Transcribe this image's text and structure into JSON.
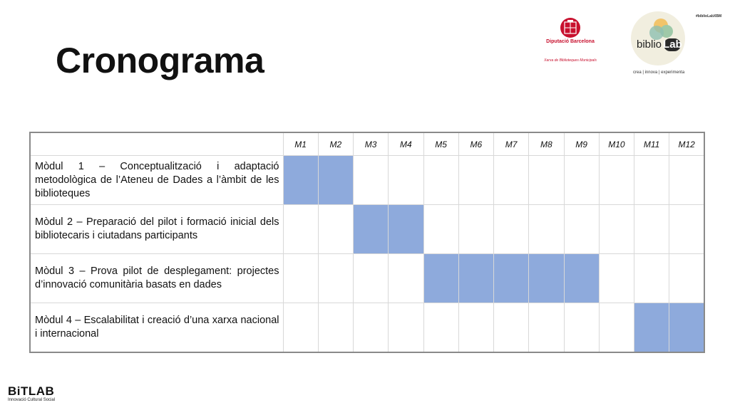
{
  "slide": {
    "title": "Cronograma",
    "hashtag": "#biblioLabXBM",
    "diputacio_name": "Diputació Barcelona",
    "diputacio_network": "Xarxa de Biblioteques Municipals",
    "bibliolab_prefix": "biblio",
    "bibliolab_suffix": "Lab",
    "bibliolab_tagline": "crea | innova | experimenta",
    "bitlab_name": "BiTLAB",
    "bitlab_sub": "Innovació Cultural Social"
  },
  "schedule": {
    "months": [
      "M1",
      "M2",
      "M3",
      "M4",
      "M5",
      "M6",
      "M7",
      "M8",
      "M9",
      "M10",
      "M11",
      "M12"
    ],
    "rows": [
      {
        "label": "Mòdul 1 – Conceptualització i adaptació metodològica de l’Ateneu de Dades a l’àmbit de les biblioteques",
        "active": [
          1,
          1,
          0,
          0,
          0,
          0,
          0,
          0,
          0,
          0,
          0,
          0
        ]
      },
      {
        "label": "Mòdul 2 – Preparació del pilot i formació inicial dels bibliotecaris i ciutadans participants",
        "active": [
          0,
          0,
          1,
          1,
          0,
          0,
          0,
          0,
          0,
          0,
          0,
          0
        ]
      },
      {
        "label": "Mòdul 3 – Prova pilot de desplegament: projectes d’innovació comunitària basats en dades",
        "active": [
          0,
          0,
          0,
          0,
          1,
          1,
          1,
          1,
          1,
          0,
          0,
          0
        ]
      },
      {
        "label": "Mòdul 4 – Escalabilitat i creació d’una xarxa nacional i internacional",
        "active": [
          0,
          0,
          0,
          0,
          0,
          0,
          0,
          0,
          0,
          0,
          1,
          1
        ]
      }
    ]
  },
  "colors": {
    "active_cell": "#8eaadc",
    "diputacio_red": "#c8102e"
  }
}
